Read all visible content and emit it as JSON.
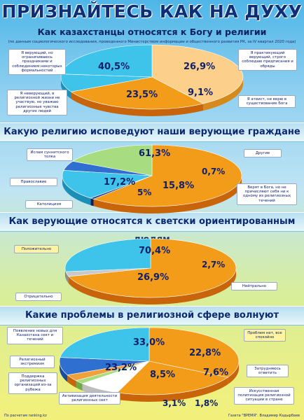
{
  "title": "ПРИЗНАЙТЕСЬ КАК НА ДУХУ",
  "subtitle": "Как казахстанцы относятся к Богу и религии",
  "source": "(по данным социологического исследования, проведенного Министерством информации и общественного развития РК, за IV квартал 2020 года)",
  "footer_left": "По расчетам ranking.kz",
  "footer_right": "Газета \"ВРЕМЯ\". Владимир Кадырбаев",
  "colors": {
    "orange": "#f39c1a",
    "light_orange": "#fcd08a",
    "cyan": "#3ec3ea",
    "dark_blue": "#2f6fd0",
    "light_green": "#a8dc80",
    "navy": "#1f3a8a",
    "grey": "#c9c9c9",
    "white": "#ffffff"
  },
  "chart_data": [
    {
      "type": "pie",
      "title": "Как казахстанцы относятся к Богу и религии",
      "slices": [
        {
          "label": "Я верующий, но ограничиваюсь праздниками и соблюдением некоторых формальностей",
          "value": 40.5,
          "pct": "40,5%"
        },
        {
          "label": "Я практикующий верующий, строго соблюдаю предписания и обряды",
          "value": 26.9,
          "pct": "26,9%"
        },
        {
          "label": "Я атеист, не верю в существование Бога",
          "value": 9.1,
          "pct": "9,1%"
        },
        {
          "label": "Я неверующий, в религиозной жизни не участвую, но уважаю религиозные чувства других людей",
          "value": 23.5,
          "pct": "23,5%"
        }
      ]
    },
    {
      "type": "pie",
      "title": "Какую религию исповедуют наши верующие граждане",
      "slices": [
        {
          "label": "Ислам суннитского толка",
          "value": 61.3,
          "pct": "61,3%"
        },
        {
          "label": "Другие",
          "value": 0.7,
          "pct": "0,7%"
        },
        {
          "label": "Верят в Бога, но не причисляют себя ни к одному из религиозных течений",
          "value": 15.8,
          "pct": "15,8%"
        },
        {
          "label": "Католицизм",
          "value": 5,
          "pct": "5%"
        },
        {
          "label": "Православие",
          "value": 17.2,
          "pct": "17,2%"
        }
      ]
    },
    {
      "type": "pie",
      "title": "Как верующие относятся к светски ориентированным людям",
      "slices": [
        {
          "label": "Положительно",
          "value": 70.4,
          "pct": "70,4%"
        },
        {
          "label": "Нейтрально",
          "value": 2.7,
          "pct": "2,7%"
        },
        {
          "label": "Отрицательно",
          "value": 26.9,
          "pct": "26,9%"
        }
      ]
    },
    {
      "type": "pie",
      "title": "Какие проблемы в религиозной сфере волнуют казахстанцев",
      "slices": [
        {
          "label": "Появление новых для Казахстана сект и течений",
          "value": 33.0,
          "pct": "33,0%"
        },
        {
          "label": "Проблем нет, все спокойно",
          "value": 22.8,
          "pct": "22,8%"
        },
        {
          "label": "Затрудняюсь ответить",
          "value": 7.6,
          "pct": "7,6%"
        },
        {
          "label": "Искусственная политизация религиозной ситуации в стране",
          "value": 1.8,
          "pct": "1,8%"
        },
        {
          "label": "Активизация деятельности религиозных сект",
          "value": 3.1,
          "pct": "3,1%"
        },
        {
          "label": "Поддержка религиозных организаций из-за рубежа",
          "value": 8.5,
          "pct": "8,5%"
        },
        {
          "label": "Религиозный экстремизм",
          "value": 23.2,
          "pct": "23,2%"
        }
      ]
    }
  ]
}
